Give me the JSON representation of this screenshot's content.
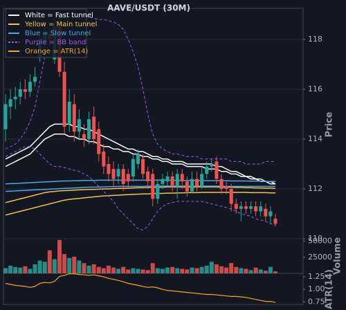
{
  "chart_data": [
    {
      "type": "candlestick",
      "title": "AAVE/USDT (30M)",
      "ylabel": "Price",
      "categories": [
        null,
        null,
        null,
        null,
        null,
        null,
        null,
        null,
        null,
        null,
        null,
        null,
        null,
        null,
        null,
        null,
        null,
        null,
        null,
        null,
        null,
        null,
        null,
        null,
        null,
        null,
        null,
        null,
        null,
        null,
        null,
        null,
        null,
        null,
        null,
        null,
        null,
        null,
        null,
        null,
        null,
        null,
        null,
        null,
        null,
        null,
        null,
        null,
        null,
        null,
        null,
        null,
        null,
        null,
        null,
        null
      ],
      "open": [
        114.4,
        115.3,
        115.6,
        115.7,
        116.0,
        115.9,
        116.3,
        117.3,
        117.8,
        118.2,
        117.2,
        118.5,
        116.7,
        114.6,
        115.4,
        114.3,
        114.2,
        114.0,
        114.9,
        114.4,
        113.5,
        113.0,
        112.8,
        112.5,
        112.8,
        112.6,
        112.5,
        113.0,
        113.2,
        112.7,
        112.6,
        111.6,
        112.2,
        112.3,
        112.5,
        112.1,
        112.6,
        112.3,
        111.9,
        112.4,
        112.1,
        112.6,
        112.9,
        113.1,
        112.4,
        112.1,
        112.0,
        111.4,
        111.2,
        111.3,
        111.2,
        111.3,
        111.1,
        111.2,
        110.9,
        110.8
      ],
      "high": [
        115.8,
        116.0,
        116.1,
        116.3,
        116.4,
        116.6,
        116.9,
        118.6,
        118.7,
        118.5,
        118.9,
        118.9,
        117.1,
        116.0,
        115.8,
        115.2,
        114.6,
        115.1,
        115.3,
        114.7,
        113.8,
        113.3,
        113.1,
        113.0,
        113.0,
        112.8,
        113.4,
        113.6,
        113.4,
        112.9,
        112.8,
        112.4,
        112.6,
        112.7,
        112.7,
        112.8,
        112.8,
        112.5,
        112.7,
        112.7,
        112.9,
        113.1,
        113.2,
        113.3,
        112.6,
        112.3,
        112.2,
        111.6,
        111.5,
        111.5,
        111.5,
        111.5,
        111.5,
        111.4,
        111.3,
        111.0
      ],
      "low": [
        113.9,
        114.8,
        115.2,
        115.4,
        115.6,
        115.7,
        116.1,
        117.1,
        117.5,
        117.7,
        117.0,
        116.5,
        114.2,
        114.3,
        113.9,
        114.0,
        113.7,
        113.8,
        113.8,
        113.1,
        112.6,
        112.3,
        112.1,
        112.2,
        111.9,
        112.0,
        112.3,
        112.8,
        112.4,
        112.0,
        111.3,
        111.4,
        112.0,
        112.1,
        111.9,
        111.6,
        112.0,
        111.7,
        111.8,
        111.9,
        112.0,
        112.4,
        112.7,
        112.2,
        111.8,
        111.8,
        111.1,
        111.0,
        110.7,
        111.0,
        111.0,
        110.9,
        110.9,
        110.7,
        110.6,
        110.5
      ],
      "close": [
        115.4,
        115.6,
        115.7,
        116.0,
        115.9,
        116.3,
        116.5,
        118.0,
        118.3,
        118.0,
        118.5,
        116.7,
        114.5,
        115.5,
        114.3,
        114.8,
        114.0,
        114.8,
        114.0,
        113.4,
        112.9,
        112.6,
        112.4,
        112.8,
        112.2,
        112.3,
        113.2,
        113.4,
        112.6,
        112.3,
        111.6,
        112.2,
        112.4,
        112.5,
        112.1,
        112.6,
        112.3,
        111.9,
        112.4,
        112.1,
        112.6,
        112.9,
        113.0,
        112.4,
        112.0,
        112.0,
        111.4,
        111.2,
        111.3,
        111.2,
        111.3,
        111.1,
        111.3,
        110.9,
        111.1,
        110.6
      ],
      "up_color": "#26a69a",
      "down_color": "#ef5350",
      "ylim": [
        110,
        119.25
      ],
      "yticks": [
        110,
        112,
        114,
        116,
        118
      ],
      "grid": true,
      "overlays": [
        {
          "color": "#ffffff",
          "dashed": false,
          "values": [
            113.2,
            113.3,
            113.4,
            113.5,
            113.6,
            113.7,
            113.9,
            114.1,
            114.3,
            114.5,
            114.6,
            114.6,
            114.6,
            114.6,
            114.5,
            114.5,
            114.4,
            114.4,
            114.3,
            114.2,
            114.1,
            114.0,
            113.9,
            113.8,
            113.7,
            113.6,
            113.6,
            113.5,
            113.5,
            113.4,
            113.3,
            113.3,
            113.2,
            113.2,
            113.1,
            113.1,
            113.1,
            113.0,
            113.0,
            113.0,
            113.0,
            113.0,
            113.0,
            112.9,
            112.9,
            112.8,
            112.7,
            112.7,
            112.6,
            112.5,
            112.5,
            112.4,
            112.4,
            112.3,
            112.3,
            112.2
          ]
        },
        {
          "color": "#ffffff",
          "dashed": false,
          "values": [
            112.9,
            113.0,
            113.1,
            113.2,
            113.3,
            113.4,
            113.6,
            113.8,
            114.0,
            114.1,
            114.2,
            114.2,
            114.2,
            114.1,
            114.1,
            114.0,
            114.0,
            113.9,
            113.9,
            113.8,
            113.7,
            113.7,
            113.6,
            113.6,
            113.5,
            113.5,
            113.4,
            113.4,
            113.3,
            113.3,
            113.2,
            113.2,
            113.1,
            113.1,
            113.0,
            113.0,
            113.0,
            112.9,
            112.9,
            112.9,
            112.9,
            112.8,
            112.8,
            112.8,
            112.7,
            112.7,
            112.6,
            112.6,
            112.5,
            112.5,
            112.4,
            112.4,
            112.3,
            112.3,
            112.2,
            112.2
          ]
        },
        {
          "color": "#f6c445",
          "dashed": false,
          "values": [
            111.45,
            111.5,
            111.55,
            111.6,
            111.65,
            111.7,
            111.75,
            111.8,
            111.85,
            111.88,
            111.9,
            111.92,
            111.93,
            111.94,
            111.95,
            111.96,
            111.97,
            111.98,
            111.98,
            111.99,
            112.0,
            112.0,
            112.01,
            112.02,
            112.02,
            112.03,
            112.04,
            112.05,
            112.05,
            112.06,
            112.06,
            112.07,
            112.07,
            112.08,
            112.08,
            112.08,
            112.08,
            112.08,
            112.08,
            112.08,
            112.08,
            112.08,
            112.08,
            112.08,
            112.07,
            112.07,
            112.07,
            112.06,
            112.06,
            112.05,
            112.05,
            112.04,
            112.04,
            112.03,
            112.03,
            112.02
          ]
        },
        {
          "color": "#f6c445",
          "dashed": false,
          "values": [
            110.95,
            111.0,
            111.05,
            111.1,
            111.15,
            111.2,
            111.25,
            111.3,
            111.35,
            111.4,
            111.45,
            111.5,
            111.55,
            111.58,
            111.6,
            111.62,
            111.64,
            111.66,
            111.68,
            111.7,
            111.72,
            111.73,
            111.74,
            111.75,
            111.76,
            111.77,
            111.78,
            111.79,
            111.8,
            111.8,
            111.81,
            111.82,
            111.82,
            111.83,
            111.83,
            111.84,
            111.84,
            111.85,
            111.85,
            111.85,
            111.86,
            111.86,
            111.86,
            111.86,
            111.86,
            111.86,
            111.86,
            111.86,
            111.86,
            111.86,
            111.85,
            111.85,
            111.85,
            111.85,
            111.84,
            111.84
          ]
        },
        {
          "color": "#4aa8ee",
          "dashed": false,
          "values": [
            112.2,
            112.21,
            112.22,
            112.23,
            112.24,
            112.25,
            112.26,
            112.27,
            112.28,
            112.29,
            112.3,
            112.31,
            112.32,
            112.32,
            112.33,
            112.33,
            112.34,
            112.34,
            112.34,
            112.35,
            112.35,
            112.35,
            112.35,
            112.35,
            112.35,
            112.35,
            112.35,
            112.35,
            112.35,
            112.35,
            112.35,
            112.35,
            112.35,
            112.35,
            112.34,
            112.34,
            112.34,
            112.34,
            112.34,
            112.34,
            112.34,
            112.33,
            112.33,
            112.33,
            112.33,
            112.33,
            112.32,
            112.32,
            112.32,
            112.32,
            112.31,
            112.31,
            112.31,
            112.3,
            112.3,
            112.3
          ]
        },
        {
          "color": "#4aa8ee",
          "dashed": false,
          "values": [
            111.9,
            111.91,
            111.92,
            111.93,
            111.94,
            111.95,
            111.96,
            111.97,
            111.98,
            111.99,
            112.0,
            112.01,
            112.02,
            112.03,
            112.04,
            112.05,
            112.06,
            112.07,
            112.07,
            112.08,
            112.08,
            112.09,
            112.09,
            112.1,
            112.1,
            112.1,
            112.1,
            112.1,
            112.1,
            112.11,
            112.11,
            112.11,
            112.11,
            112.11,
            112.11,
            112.11,
            112.11,
            112.11,
            112.11,
            112.11,
            112.11,
            112.11,
            112.11,
            112.11,
            112.11,
            112.1,
            112.1,
            112.1,
            112.1,
            112.1,
            112.1,
            112.1,
            112.1,
            112.1,
            112.1,
            112.1
          ]
        },
        {
          "color": "#9b5de5",
          "dashed": true,
          "values": [
            113.6,
            113.7,
            113.8,
            114.0,
            114.3,
            114.7,
            115.3,
            116.3,
            117.3,
            118.1,
            118.6,
            118.9,
            119.0,
            119.05,
            119.0,
            119.0,
            118.95,
            118.9,
            118.85,
            118.8,
            118.8,
            118.75,
            118.7,
            118.6,
            118.4,
            118.0,
            117.5,
            116.9,
            116.0,
            115.0,
            114.2,
            113.8,
            113.6,
            113.5,
            113.4,
            113.4,
            113.35,
            113.3,
            113.3,
            113.3,
            113.2,
            113.2,
            113.2,
            113.2,
            113.2,
            113.2,
            113.1,
            113.1,
            113.1,
            113.0,
            113.0,
            113.0,
            113.0,
            113.1,
            113.1,
            113.1
          ]
        },
        {
          "color": "#9b5de5",
          "dashed": true,
          "values": [
            113.3,
            113.4,
            113.5,
            113.6,
            113.7,
            113.7,
            113.6,
            113.4,
            113.2,
            113.0,
            112.9,
            112.9,
            112.85,
            112.8,
            112.75,
            112.7,
            112.6,
            112.5,
            112.3,
            112.1,
            111.9,
            111.7,
            111.5,
            111.2,
            111.0,
            110.8,
            110.6,
            110.4,
            110.35,
            110.5,
            110.8,
            111.1,
            111.3,
            111.4,
            111.45,
            111.5,
            111.5,
            111.5,
            111.5,
            111.5,
            111.5,
            111.45,
            111.4,
            111.35,
            111.3,
            111.25,
            111.2,
            111.1,
            111.0,
            110.95,
            110.9,
            110.8,
            110.75,
            110.7,
            110.6,
            110.55
          ]
        }
      ],
      "legend_position": "upper left",
      "legend": [
        {
          "label": "White = Fast tunnel",
          "color": "#ffffff",
          "dashed": false
        },
        {
          "label": "Yellow = Main tunnel",
          "color": "#f6c445",
          "dashed": false
        },
        {
          "label": "Blue = Slow tunnel",
          "color": "#4aa8ee",
          "dashed": false
        },
        {
          "label": "Purple = BB band",
          "color": "#9b5de5",
          "dashed": true
        },
        {
          "label": "Orange = ATR(14)",
          "color": "#f5a623",
          "dashed": false
        }
      ]
    },
    {
      "type": "bar",
      "ylabel": "Volume",
      "values": [
        8000,
        12000,
        10000,
        9000,
        11000,
        7000,
        14000,
        20000,
        18000,
        36000,
        22000,
        52000,
        30000,
        24000,
        26000,
        20000,
        16000,
        12000,
        14000,
        10000,
        8000,
        12000,
        9000,
        7000,
        10000,
        6000,
        8000,
        7000,
        6000,
        5000,
        16000,
        8000,
        7000,
        9000,
        10000,
        8000,
        7000,
        6000,
        9000,
        8000,
        10000,
        12000,
        18000,
        14000,
        11000,
        9000,
        16000,
        10000,
        8000,
        7000,
        5000,
        9000,
        6000,
        4000,
        10000,
        3000
      ],
      "ylim": [
        0,
        54000
      ],
      "yticks": [
        25000,
        50000
      ]
    },
    {
      "type": "line",
      "ylabel": "ATR(14)",
      "color": "#f5a623",
      "values": [
        1.12,
        1.1,
        1.08,
        1.07,
        1.06,
        1.04,
        1.06,
        1.12,
        1.14,
        1.13,
        1.16,
        1.26,
        1.28,
        1.31,
        1.31,
        1.3,
        1.29,
        1.28,
        1.29,
        1.27,
        1.25,
        1.22,
        1.2,
        1.18,
        1.15,
        1.12,
        1.1,
        1.08,
        1.06,
        1.04,
        1.05,
        1.03,
        1.0,
        0.98,
        0.97,
        0.96,
        0.95,
        0.94,
        0.93,
        0.92,
        0.91,
        0.9,
        0.9,
        0.89,
        0.88,
        0.87,
        0.86,
        0.86,
        0.85,
        0.84,
        0.82,
        0.8,
        0.78,
        0.76,
        0.76,
        0.74
      ],
      "ylim": [
        0.7,
        1.32
      ],
      "yticks": [
        {
          "value": 0.75,
          "label": "0.75"
        },
        {
          "value": 1,
          "label": "1.00"
        },
        {
          "value": 1.25,
          "label": "1.25"
        }
      ]
    }
  ]
}
